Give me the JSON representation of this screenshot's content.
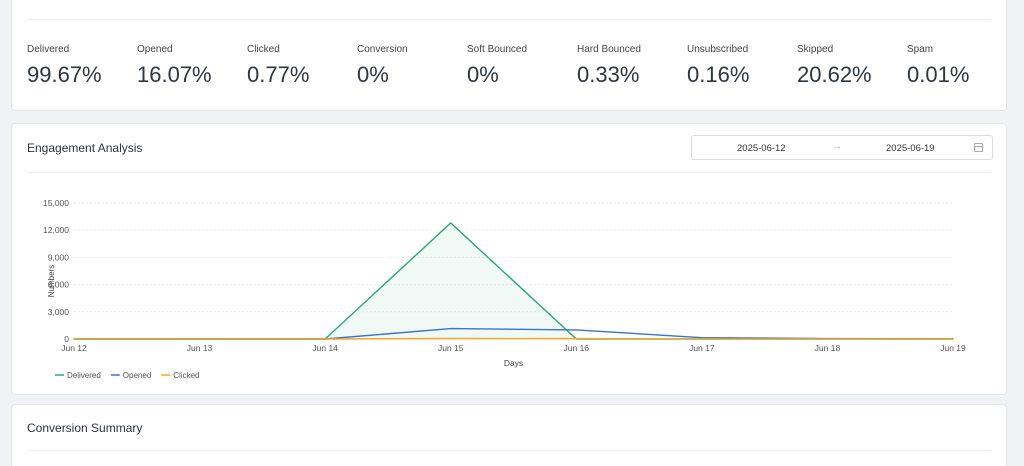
{
  "stats": [
    {
      "label": "Delivered",
      "value": "99.67%"
    },
    {
      "label": "Opened",
      "value": "16.07%"
    },
    {
      "label": "Clicked",
      "value": "0.77%"
    },
    {
      "label": "Conversion",
      "value": "0%"
    },
    {
      "label": "Soft Bounced",
      "value": "0%"
    },
    {
      "label": "Hard Bounced",
      "value": "0.33%"
    },
    {
      "label": "Unsubscribed",
      "value": "0.16%"
    },
    {
      "label": "Skipped",
      "value": "20.62%"
    },
    {
      "label": "Spam",
      "value": "0.01%"
    }
  ],
  "engagement": {
    "title": "Engagement Analysis",
    "date_start": "2025-06-12",
    "date_arrow": "→",
    "date_end": "2025-06-19",
    "calendar_icon": "calendar-icon"
  },
  "chart_data": {
    "type": "line",
    "x": [
      "Jun 12",
      "Jun 13",
      "Jun 14",
      "Jun 15",
      "Jun 16",
      "Jun 17",
      "Jun 18",
      "Jun 19"
    ],
    "xlabel": "Days",
    "ylabel": "Numbers",
    "ylim": [
      0,
      15000
    ],
    "yticks": [
      "0",
      "3,000",
      "6,000",
      "9,000",
      "12,000",
      "15,000"
    ],
    "grid": true,
    "legend_position": "bottom-left",
    "series": [
      {
        "name": "Delivered",
        "color": "#2aa876",
        "values": [
          0,
          0,
          0,
          12800,
          0,
          0,
          0,
          0
        ],
        "area": true
      },
      {
        "name": "Opened",
        "color": "#3d6fd9",
        "values": [
          0,
          0,
          0,
          1150,
          1000,
          150,
          50,
          20
        ]
      },
      {
        "name": "Clicked",
        "color": "#f5a623",
        "values": [
          0,
          0,
          0,
          60,
          40,
          10,
          5,
          0
        ]
      }
    ]
  },
  "conversion": {
    "title": "Conversion Summary"
  }
}
